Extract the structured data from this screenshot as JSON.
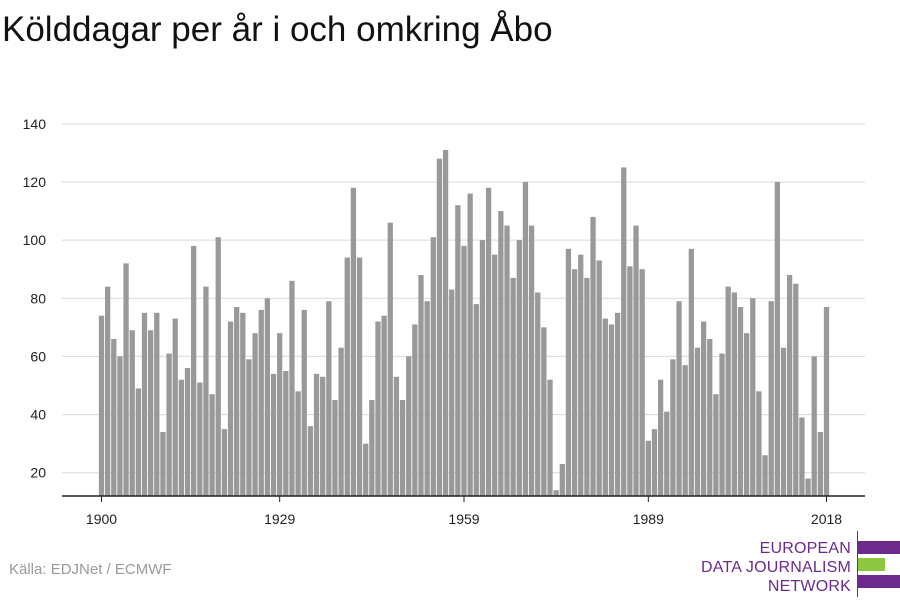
{
  "chart_data": {
    "type": "bar",
    "title": "Kölddagar per år i och omkring Åbo",
    "xlabel": "",
    "ylabel": "",
    "x_start_year": 1900,
    "x_end_year": 2018,
    "x_tick_labels": [
      "1900",
      "1929",
      "1959",
      "1989",
      "2018"
    ],
    "y_ticks": [
      20,
      40,
      60,
      80,
      100,
      120,
      140
    ],
    "ylim": [
      12,
      142
    ],
    "grid": true,
    "values": [
      74,
      84,
      66,
      60,
      92,
      69,
      49,
      75,
      69,
      75,
      34,
      61,
      73,
      52,
      56,
      98,
      51,
      84,
      47,
      101,
      35,
      72,
      77,
      75,
      59,
      68,
      76,
      80,
      54,
      68,
      55,
      86,
      48,
      76,
      36,
      54,
      53,
      79,
      45,
      63,
      94,
      118,
      94,
      30,
      45,
      72,
      74,
      106,
      53,
      45,
      60,
      71,
      88,
      79,
      101,
      128,
      131,
      83,
      112,
      98,
      116,
      78,
      100,
      118,
      95,
      110,
      105,
      87,
      100,
      120,
      105,
      82,
      70,
      52,
      14,
      23,
      97,
      90,
      95,
      87,
      108,
      93,
      73,
      71,
      75,
      125,
      91,
      105,
      90,
      31,
      35,
      52,
      41,
      59,
      79,
      57,
      97,
      63,
      72,
      66,
      47,
      61,
      84,
      82,
      77,
      68,
      80,
      48,
      26,
      79,
      120,
      63,
      88,
      85,
      39,
      18,
      60,
      34,
      77
    ],
    "bar_color": "#999999",
    "grid_color": "#d9d9d9",
    "axis_color": "#222222"
  },
  "source": "Källa: EDJNet / ECMWF",
  "logo": {
    "lines": [
      "EUROPEAN",
      "DATA JOURNALISM",
      "NETWORK"
    ],
    "text_color": "#6b2a8c",
    "bar_colors": [
      "#6b2a8c",
      "#8dc63f",
      "#6b2a8c"
    ]
  }
}
